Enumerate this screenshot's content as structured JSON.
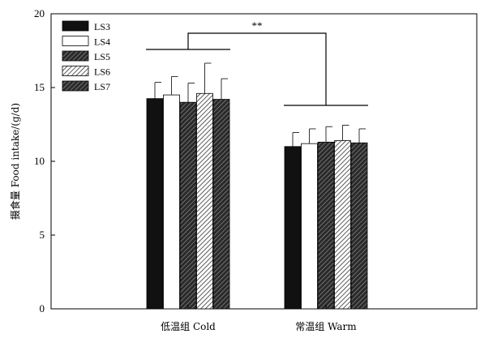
{
  "chart_data": {
    "type": "bar",
    "categories": [
      "低温组 Cold",
      "常温组 Warm"
    ],
    "series": [
      {
        "name": "LS3",
        "values": [
          14.25,
          11.0
        ],
        "errors": [
          1.1,
          0.95
        ],
        "fill": "solid-black"
      },
      {
        "name": "LS4",
        "values": [
          14.5,
          11.2
        ],
        "errors": [
          1.25,
          1.0
        ],
        "fill": "white"
      },
      {
        "name": "LS5",
        "values": [
          14.0,
          11.3
        ],
        "errors": [
          1.3,
          1.05
        ],
        "fill": "dense-hatch"
      },
      {
        "name": "LS6",
        "values": [
          14.6,
          11.4
        ],
        "errors": [
          2.05,
          1.05
        ],
        "fill": "light-hatch"
      },
      {
        "name": "LS7",
        "values": [
          14.2,
          11.25
        ],
        "errors": [
          1.4,
          0.95
        ],
        "fill": "dense-hatch"
      }
    ],
    "xlabel": "",
    "ylabel": "摄食量 Food intake/(g/d)",
    "ylim": [
      0,
      20
    ],
    "yticks": [
      "0",
      "5",
      "10",
      "15",
      "20"
    ],
    "legend_position": "top-left",
    "significance_label": "**",
    "grid": false,
    "colors": {
      "bar_dark": "#1a1a1a",
      "bar_hatch": "#3a3a3a",
      "axis": "#000000",
      "background": "#ffffff"
    }
  }
}
